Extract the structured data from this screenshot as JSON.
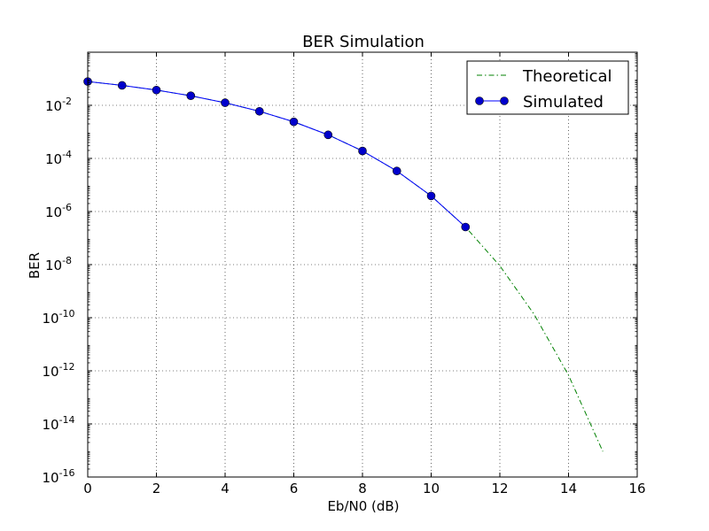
{
  "chart_data": {
    "type": "line",
    "title": "BER Simulation",
    "xlabel": "Eb/N0 (dB)",
    "ylabel": "BER",
    "xlim": [
      0,
      16
    ],
    "ylim": [
      1e-16,
      1
    ],
    "yscale": "log",
    "grid": true,
    "legend_position": "top-right",
    "x_ticks": [
      "0",
      "2",
      "4",
      "6",
      "8",
      "10",
      "12",
      "14",
      "16"
    ],
    "y_ticks": [
      {
        "base": "10",
        "exp": "-2"
      },
      {
        "base": "10",
        "exp": "-4"
      },
      {
        "base": "10",
        "exp": "-6"
      },
      {
        "base": "10",
        "exp": "-8"
      },
      {
        "base": "10",
        "exp": "-10"
      },
      {
        "base": "10",
        "exp": "-12"
      },
      {
        "base": "10",
        "exp": "-14"
      },
      {
        "base": "10",
        "exp": "-16"
      }
    ],
    "series": [
      {
        "name": "Theoretical",
        "style": "dash-dot",
        "color": "#008000",
        "x": [
          0,
          1,
          2,
          3,
          4,
          5,
          6,
          7,
          8,
          9,
          10,
          11,
          12,
          13,
          14,
          15
        ],
        "y": [
          0.0786,
          0.0563,
          0.0375,
          0.0229,
          0.0125,
          0.00595,
          0.00239,
          0.000773,
          0.000191,
          3.36e-05,
          3.87e-06,
          2.61e-07,
          9e-09,
          1.33e-10,
          6.8e-13,
          9.1e-16
        ]
      },
      {
        "name": "Simulated",
        "style": "solid-marker",
        "color": "#0000ff",
        "marker_color": "#0000cc",
        "x": [
          0,
          1,
          2,
          3,
          4,
          5,
          6,
          7,
          8,
          9,
          10,
          11
        ],
        "y": [
          0.0786,
          0.0563,
          0.0375,
          0.0229,
          0.0125,
          0.00595,
          0.00239,
          0.000773,
          0.000191,
          3.36e-05,
          3.87e-06,
          2.61e-07
        ]
      }
    ]
  }
}
